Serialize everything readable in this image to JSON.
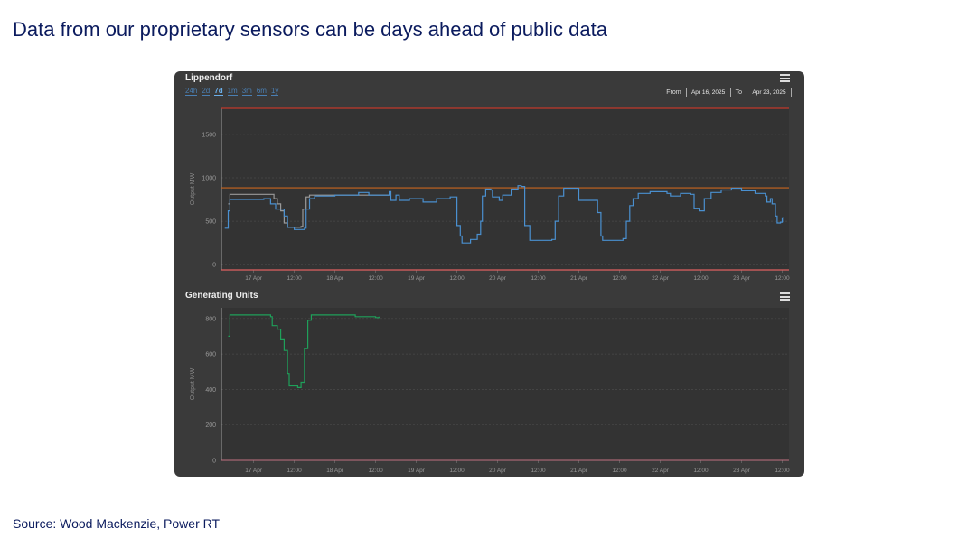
{
  "page": {
    "title": "Data from our proprietary sensors can be days ahead of public data",
    "source": "Source: Wood Mackenzie, Power RT"
  },
  "panel": {
    "top_chart_title": "Lippendorf",
    "bottom_chart_title": "Generating Units",
    "range_buttons": [
      "24h",
      "2d",
      "7d",
      "1m",
      "3m",
      "6m",
      "1y"
    ],
    "active_range": "7d",
    "from_label": "From",
    "from_value": "Apr 16, 2025",
    "to_label": "To",
    "to_value": "Apr 23, 2025",
    "menu_icon": "hamburger-menu-icon"
  },
  "colors": {
    "title": "#0b1b5e",
    "panel_bg": "#3a3a3a",
    "plot_bg": "#333333",
    "blue_series": "#4a90d0",
    "gray_series": "#9a9a9a",
    "green_series": "#1fa05a",
    "capacity_line": "#c0392b",
    "threshold_line": "#c8641e"
  },
  "chart_data": [
    {
      "type": "line",
      "title": "Lippendorf",
      "ylabel": "Output MW",
      "xlim": [
        "2025-04-16T14:30",
        "2025-04-23T14:00"
      ],
      "ylim": [
        -60,
        1800
      ],
      "yticks": [
        0,
        500,
        1000,
        1500
      ],
      "xtick_labels": [
        "17 Apr",
        "12:00",
        "18 Apr",
        "12:00",
        "19 Apr",
        "12:00",
        "20 Apr",
        "12:00",
        "21 Apr",
        "12:00",
        "22 Apr",
        "12:00",
        "23 Apr",
        "12:00"
      ],
      "grid": true,
      "step": true,
      "reference_lines": [
        {
          "y": 1800,
          "color": "#c0392b"
        },
        {
          "y": -60,
          "color": "#e06060"
        },
        {
          "y": 885,
          "color": "#c8641e"
        }
      ],
      "series": [
        {
          "color": "#4a90d0",
          "points": [
            [
              "2025-04-16T15:30",
              420
            ],
            [
              "2025-04-16T16:30",
              620
            ],
            [
              "2025-04-16T17:00",
              750
            ],
            [
              "2025-04-17T00:00",
              750
            ],
            [
              "2025-04-17T03:00",
              760
            ],
            [
              "2025-04-17T05:00",
              700
            ],
            [
              "2025-04-17T06:30",
              640
            ],
            [
              "2025-04-17T09:00",
              560
            ],
            [
              "2025-04-17T10:00",
              430
            ],
            [
              "2025-04-17T12:00",
              405
            ],
            [
              "2025-04-17T15:00",
              420
            ],
            [
              "2025-04-17T15:30",
              640
            ],
            [
              "2025-04-17T16:30",
              760
            ],
            [
              "2025-04-17T18:00",
              790
            ],
            [
              "2025-04-18T00:00",
              800
            ],
            [
              "2025-04-18T07:00",
              830
            ],
            [
              "2025-04-18T10:00",
              800
            ],
            [
              "2025-04-18T16:00",
              840
            ],
            [
              "2025-04-18T16:30",
              740
            ],
            [
              "2025-04-18T18:00",
              800
            ],
            [
              "2025-04-18T19:00",
              740
            ],
            [
              "2025-04-18T22:00",
              760
            ],
            [
              "2025-04-19T02:00",
              720
            ],
            [
              "2025-04-19T06:00",
              760
            ],
            [
              "2025-04-19T10:00",
              780
            ],
            [
              "2025-04-19T12:00",
              450
            ],
            [
              "2025-04-19T13:00",
              330
            ],
            [
              "2025-04-19T13:30",
              250
            ],
            [
              "2025-04-19T16:00",
              290
            ],
            [
              "2025-04-19T18:00",
              350
            ],
            [
              "2025-04-19T19:00",
              500
            ],
            [
              "2025-04-19T19:30",
              790
            ],
            [
              "2025-04-19T20:30",
              870
            ],
            [
              "2025-04-19T22:00",
              860
            ],
            [
              "2025-04-19T22:30",
              780
            ],
            [
              "2025-04-20T00:30",
              740
            ],
            [
              "2025-04-20T01:30",
              800
            ],
            [
              "2025-04-20T04:00",
              870
            ],
            [
              "2025-04-20T06:00",
              910
            ],
            [
              "2025-04-20T07:00",
              900
            ],
            [
              "2025-04-20T08:00",
              450
            ],
            [
              "2025-04-20T09:30",
              280
            ],
            [
              "2025-04-20T16:00",
              290
            ],
            [
              "2025-04-20T17:00",
              500
            ],
            [
              "2025-04-20T18:00",
              790
            ],
            [
              "2025-04-20T19:30",
              880
            ],
            [
              "2025-04-20T23:30",
              880
            ],
            [
              "2025-04-21T00:00",
              740
            ],
            [
              "2025-04-21T05:00",
              740
            ],
            [
              "2025-04-21T05:30",
              600
            ],
            [
              "2025-04-21T06:30",
              330
            ],
            [
              "2025-04-21T07:00",
              280
            ],
            [
              "2025-04-21T13:00",
              300
            ],
            [
              "2025-04-21T14:00",
              500
            ],
            [
              "2025-04-21T15:00",
              680
            ],
            [
              "2025-04-21T16:00",
              760
            ],
            [
              "2025-04-21T17:30",
              820
            ],
            [
              "2025-04-21T21:00",
              840
            ],
            [
              "2025-04-22T02:00",
              820
            ],
            [
              "2025-04-22T03:00",
              790
            ],
            [
              "2025-04-22T06:00",
              820
            ],
            [
              "2025-04-22T09:00",
              810
            ],
            [
              "2025-04-22T10:00",
              650
            ],
            [
              "2025-04-22T11:30",
              620
            ],
            [
              "2025-04-22T13:00",
              760
            ],
            [
              "2025-04-22T15:00",
              830
            ],
            [
              "2025-04-22T18:00",
              860
            ],
            [
              "2025-04-22T21:00",
              880
            ],
            [
              "2025-04-23T00:00",
              850
            ],
            [
              "2025-04-23T04:00",
              820
            ],
            [
              "2025-04-23T07:00",
              790
            ],
            [
              "2025-04-23T07:30",
              720
            ],
            [
              "2025-04-23T08:30",
              760
            ],
            [
              "2025-04-23T09:00",
              700
            ],
            [
              "2025-04-23T10:00",
              560
            ],
            [
              "2025-04-23T10:30",
              480
            ],
            [
              "2025-04-23T11:30",
              490
            ],
            [
              "2025-04-23T12:00",
              540
            ],
            [
              "2025-04-23T12:30",
              490
            ]
          ]
        },
        {
          "color": "#9a9a9a",
          "points": [
            [
              "2025-04-16T16:30",
              700
            ],
            [
              "2025-04-16T17:00",
              810
            ],
            [
              "2025-04-17T05:00",
              810
            ],
            [
              "2025-04-17T06:00",
              760
            ],
            [
              "2025-04-17T07:00",
              700
            ],
            [
              "2025-04-17T08:00",
              620
            ],
            [
              "2025-04-17T09:00",
              480
            ],
            [
              "2025-04-17T10:00",
              430
            ],
            [
              "2025-04-17T14:00",
              440
            ],
            [
              "2025-04-17T14:30",
              640
            ],
            [
              "2025-04-17T15:30",
              780
            ],
            [
              "2025-04-17T16:30",
              800
            ],
            [
              "2025-04-18T16:00",
              800
            ]
          ]
        }
      ]
    },
    {
      "type": "line",
      "title": "Generating Units",
      "ylabel": "Output MW",
      "xlim": [
        "2025-04-16T14:30",
        "2025-04-23T14:00"
      ],
      "ylim": [
        0,
        860
      ],
      "yticks": [
        0,
        200,
        400,
        600,
        800
      ],
      "xtick_labels": [
        "17 Apr",
        "12:00",
        "18 Apr",
        "12:00",
        "19 Apr",
        "12:00",
        "20 Apr",
        "12:00",
        "21 Apr",
        "12:00",
        "22 Apr",
        "12:00",
        "23 Apr",
        "12:00"
      ],
      "grid": true,
      "step": true,
      "series": [
        {
          "color": "#1fa05a",
          "points": [
            [
              "2025-04-16T16:30",
              700
            ],
            [
              "2025-04-16T17:00",
              820
            ],
            [
              "2025-04-17T02:00",
              820
            ],
            [
              "2025-04-17T05:00",
              810
            ],
            [
              "2025-04-17T05:30",
              760
            ],
            [
              "2025-04-17T07:00",
              740
            ],
            [
              "2025-04-17T08:00",
              680
            ],
            [
              "2025-04-17T09:00",
              620
            ],
            [
              "2025-04-17T10:00",
              490
            ],
            [
              "2025-04-17T10:30",
              420
            ],
            [
              "2025-04-17T13:00",
              410
            ],
            [
              "2025-04-17T14:00",
              440
            ],
            [
              "2025-04-17T15:00",
              630
            ],
            [
              "2025-04-17T16:00",
              790
            ],
            [
              "2025-04-17T17:00",
              820
            ],
            [
              "2025-04-18T00:00",
              820
            ],
            [
              "2025-04-18T06:00",
              810
            ],
            [
              "2025-04-18T12:00",
              805
            ],
            [
              "2025-04-18T13:00",
              810
            ]
          ]
        }
      ]
    }
  ]
}
